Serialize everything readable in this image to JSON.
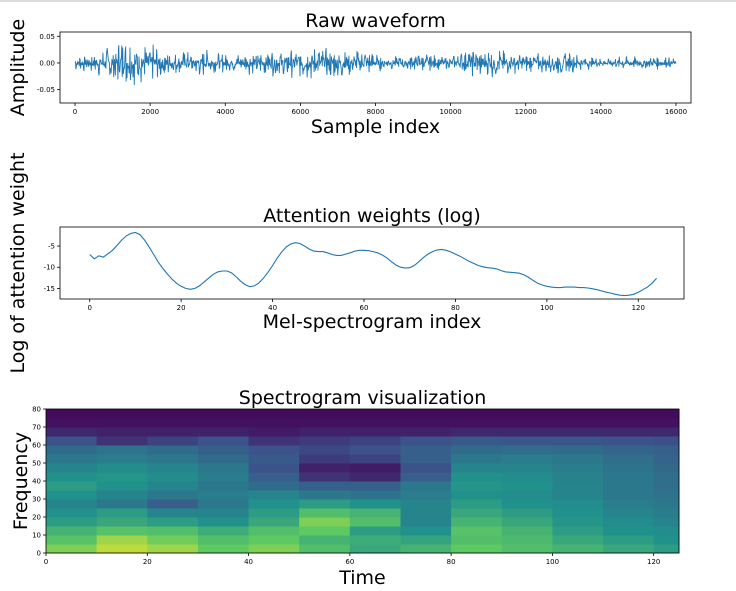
{
  "chart_data": [
    {
      "type": "line",
      "title": "Raw waveform",
      "xlabel": "Sample index",
      "ylabel": "Amplitude",
      "xlim": [
        -400,
        16400
      ],
      "ylim": [
        -0.075,
        0.058
      ],
      "xticks": [
        0,
        2000,
        4000,
        6000,
        8000,
        10000,
        12000,
        14000,
        16000
      ],
      "xtick_labels": [
        "0",
        "2000",
        "4000",
        "6000",
        "8000",
        "10000",
        "12000",
        "14000",
        "16000"
      ],
      "yticks": [
        0.05,
        0.0,
        -0.05
      ],
      "ytick_labels": [
        "0.05",
        "0.00",
        "-0.05"
      ],
      "color": "#1f77b4",
      "series": [
        {
          "x": [
            0,
            400,
            800,
            1200,
            1500,
            1800,
            2200,
            2600,
            3000,
            3400,
            3800,
            4200,
            4600,
            5000,
            5400,
            5800,
            6200,
            6600,
            7000,
            7400,
            7800,
            8000,
            8400,
            8800,
            9200,
            9600,
            10000,
            10400,
            10800,
            11200,
            11600,
            12000,
            12400,
            12800,
            13200,
            13600,
            14000,
            14400,
            14800,
            15200,
            15600,
            16000
          ],
          "y": [
            0.015,
            0.02,
            0.03,
            0.048,
            0.05,
            0.04,
            0.035,
            0.025,
            0.022,
            0.028,
            0.02,
            0.018,
            0.022,
            0.025,
            0.03,
            0.028,
            0.035,
            0.03,
            0.032,
            0.025,
            0.03,
            0.018,
            0.012,
            0.015,
            0.02,
            0.015,
            0.012,
            0.025,
            0.03,
            0.028,
            0.022,
            0.018,
            0.02,
            0.025,
            0.02,
            0.012,
            0.01,
            0.012,
            0.014,
            0.012,
            0.014,
            0.008
          ]
        }
      ]
    },
    {
      "type": "line",
      "title": "Attention weights (log)",
      "xlabel": "Mel-spectrogram index",
      "ylabel": "Log of attention weight",
      "xlim": [
        -6.5,
        130
      ],
      "ylim": [
        -17.5,
        -0.5
      ],
      "xticks": [
        0,
        20,
        40,
        60,
        80,
        100,
        120
      ],
      "xtick_labels": [
        "0",
        "20",
        "40",
        "60",
        "80",
        "100",
        "120"
      ],
      "yticks": [
        -5,
        -10,
        -15
      ],
      "ytick_labels": [
        "-5",
        "-10",
        "-15"
      ],
      "color": "#1f77b4",
      "series": [
        {
          "x": [
            0,
            1,
            2,
            3,
            4,
            5,
            6,
            7,
            8,
            9,
            10,
            11,
            12,
            13,
            14,
            15,
            16,
            17,
            18,
            19,
            20,
            21,
            22,
            23,
            24,
            25,
            26,
            27,
            28,
            29,
            30,
            31,
            32,
            33,
            34,
            35,
            36,
            37,
            38,
            39,
            40,
            41,
            42,
            43,
            44,
            45,
            46,
            47,
            48,
            49,
            50,
            51,
            52,
            53,
            54,
            55,
            56,
            57,
            58,
            59,
            60,
            61,
            62,
            63,
            64,
            65,
            66,
            67,
            68,
            69,
            70,
            71,
            72,
            73,
            74,
            75,
            76,
            77,
            78,
            79,
            80,
            81,
            82,
            83,
            84,
            85,
            86,
            87,
            88,
            89,
            90,
            91,
            92,
            93,
            94,
            95,
            96,
            97,
            98,
            99,
            100,
            101,
            102,
            103,
            104,
            105,
            106,
            107,
            108,
            109,
            110,
            111,
            112,
            113,
            114,
            115,
            116,
            117,
            118,
            119,
            120,
            121,
            122,
            123,
            124
          ],
          "y": [
            -7.0,
            -8.0,
            -7.3,
            -7.6,
            -6.8,
            -6.0,
            -4.8,
            -3.6,
            -2.6,
            -2.0,
            -1.8,
            -2.3,
            -3.6,
            -5.2,
            -7.0,
            -8.8,
            -10.3,
            -11.6,
            -12.8,
            -13.8,
            -14.5,
            -15.0,
            -15.2,
            -15.0,
            -14.4,
            -13.5,
            -12.6,
            -11.7,
            -11.1,
            -10.9,
            -10.9,
            -11.3,
            -12.2,
            -13.3,
            -14.1,
            -14.6,
            -14.4,
            -13.7,
            -12.6,
            -11.2,
            -9.6,
            -7.9,
            -6.4,
            -5.2,
            -4.5,
            -4.2,
            -4.4,
            -5.0,
            -5.7,
            -6.2,
            -6.3,
            -6.3,
            -6.6,
            -7.0,
            -7.2,
            -7.2,
            -6.9,
            -6.6,
            -6.2,
            -6.0,
            -6.0,
            -6.1,
            -6.3,
            -6.6,
            -7.1,
            -7.8,
            -8.7,
            -9.5,
            -10.0,
            -10.2,
            -10.1,
            -9.6,
            -8.7,
            -7.7,
            -6.9,
            -6.3,
            -5.9,
            -5.8,
            -6.0,
            -6.4,
            -6.9,
            -7.4,
            -8.0,
            -8.6,
            -9.1,
            -9.6,
            -9.9,
            -10.1,
            -10.2,
            -10.4,
            -10.8,
            -11.1,
            -11.2,
            -11.3,
            -11.4,
            -11.8,
            -12.4,
            -13.1,
            -13.8,
            -14.2,
            -14.5,
            -14.7,
            -14.8,
            -14.8,
            -14.7,
            -14.7,
            -14.7,
            -14.8,
            -14.8,
            -14.9,
            -15.1,
            -15.3,
            -15.6,
            -15.9,
            -16.1,
            -16.4,
            -16.6,
            -16.7,
            -16.6,
            -16.4,
            -15.9,
            -15.3,
            -14.7,
            -13.8,
            -12.6
          ]
        }
      ]
    },
    {
      "type": "heatmap",
      "title": "Spectrogram visualization",
      "xlabel": "Time",
      "ylabel": "Frequency",
      "xlim": [
        0,
        125
      ],
      "ylim": [
        0,
        80
      ],
      "xticks": [
        0,
        20,
        40,
        60,
        80,
        100,
        120
      ],
      "xtick_labels": [
        "0",
        "20",
        "40",
        "60",
        "80",
        "100",
        "120"
      ],
      "yticks": [
        0,
        10,
        20,
        30,
        40,
        50,
        60,
        70,
        80
      ],
      "ytick_labels": [
        "0",
        "10",
        "20",
        "30",
        "40",
        "50",
        "60",
        "70",
        "80"
      ],
      "colormap": "viridis",
      "value_range": [
        0,
        1
      ],
      "description_of_cells": "values estimated from colors; rows = frequency bands, cols = time frames",
      "rows_freq": [
        0,
        5,
        10,
        15,
        20,
        25,
        30,
        35,
        40,
        45,
        50,
        55,
        60,
        65,
        70,
        75
      ],
      "cols_time": [
        0,
        10,
        20,
        30,
        40,
        50,
        60,
        70,
        80,
        90,
        100,
        110,
        120
      ],
      "values": [
        [
          0.8,
          0.9,
          0.85,
          0.75,
          0.8,
          0.7,
          0.6,
          0.65,
          0.75,
          0.7,
          0.65,
          0.6,
          0.55
        ],
        [
          0.72,
          0.85,
          0.78,
          0.7,
          0.75,
          0.65,
          0.62,
          0.58,
          0.7,
          0.68,
          0.6,
          0.55,
          0.5
        ],
        [
          0.65,
          0.72,
          0.7,
          0.62,
          0.7,
          0.75,
          0.55,
          0.5,
          0.72,
          0.65,
          0.55,
          0.5,
          0.48
        ],
        [
          0.55,
          0.6,
          0.55,
          0.5,
          0.6,
          0.8,
          0.7,
          0.45,
          0.65,
          0.6,
          0.52,
          0.48,
          0.45
        ],
        [
          0.5,
          0.55,
          0.45,
          0.45,
          0.55,
          0.7,
          0.65,
          0.45,
          0.6,
          0.55,
          0.5,
          0.45,
          0.42
        ],
        [
          0.45,
          0.4,
          0.3,
          0.4,
          0.5,
          0.55,
          0.5,
          0.45,
          0.55,
          0.5,
          0.48,
          0.42,
          0.4
        ],
        [
          0.5,
          0.45,
          0.4,
          0.42,
          0.45,
          0.4,
          0.38,
          0.42,
          0.5,
          0.48,
          0.45,
          0.4,
          0.38
        ],
        [
          0.55,
          0.5,
          0.45,
          0.4,
          0.35,
          0.3,
          0.3,
          0.4,
          0.52,
          0.5,
          0.45,
          0.4,
          0.36
        ],
        [
          0.5,
          0.52,
          0.48,
          0.42,
          0.3,
          0.15,
          0.12,
          0.3,
          0.5,
          0.48,
          0.44,
          0.4,
          0.36
        ],
        [
          0.45,
          0.48,
          0.45,
          0.4,
          0.25,
          0.1,
          0.08,
          0.25,
          0.45,
          0.45,
          0.42,
          0.38,
          0.34
        ],
        [
          0.4,
          0.42,
          0.4,
          0.35,
          0.28,
          0.18,
          0.2,
          0.3,
          0.4,
          0.42,
          0.4,
          0.36,
          0.32
        ],
        [
          0.35,
          0.38,
          0.35,
          0.3,
          0.25,
          0.22,
          0.25,
          0.3,
          0.35,
          0.36,
          0.35,
          0.32,
          0.3
        ],
        [
          0.25,
          0.15,
          0.2,
          0.25,
          0.15,
          0.18,
          0.2,
          0.25,
          0.28,
          0.26,
          0.26,
          0.25,
          0.24
        ],
        [
          0.12,
          0.1,
          0.1,
          0.1,
          0.08,
          0.1,
          0.1,
          0.1,
          0.12,
          0.12,
          0.12,
          0.12,
          0.12
        ],
        [
          0.05,
          0.05,
          0.05,
          0.05,
          0.05,
          0.05,
          0.05,
          0.05,
          0.05,
          0.05,
          0.05,
          0.05,
          0.05
        ],
        [
          0.03,
          0.03,
          0.03,
          0.03,
          0.03,
          0.03,
          0.03,
          0.03,
          0.03,
          0.03,
          0.03,
          0.03,
          0.03
        ]
      ]
    }
  ]
}
